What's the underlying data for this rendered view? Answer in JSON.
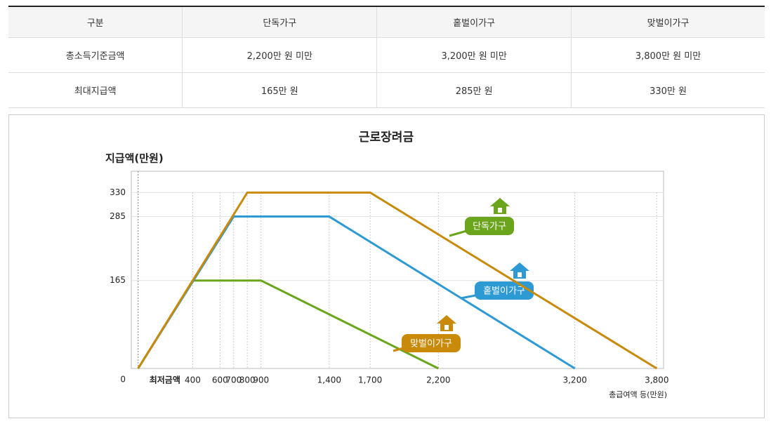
{
  "table": {
    "header": [
      "구분",
      "단독가구",
      "홑벌이가구",
      "맞벌이가구"
    ],
    "rows": [
      [
        "총소득기준금액",
        "2,200만 원 미만",
        "3,200만 원 미만",
        "3,800만 원 미만"
      ],
      [
        "최대지급액",
        "165만 원",
        "285만 원",
        "330만 원"
      ]
    ]
  },
  "chart_data": {
    "type": "line",
    "title": "근로장려금",
    "y_label": "지급액(만원)",
    "x_label": "총급여액 등(만원)",
    "series": [
      {
        "name": "단독가구",
        "color": "#6aa51c",
        "x": [
          0,
          400,
          900,
          2200
        ],
        "values": [
          0,
          165,
          165,
          0
        ]
      },
      {
        "name": "홑벌이가구",
        "color": "#2e9ad4",
        "x": [
          0,
          700,
          1400,
          3200
        ],
        "values": [
          0,
          285,
          285,
          0
        ]
      },
      {
        "name": "맞벌이가구",
        "color": "#c98a0a",
        "x": [
          0,
          800,
          1700,
          3800
        ],
        "values": [
          0,
          330,
          330,
          0
        ]
      }
    ],
    "xlim": [
      -50,
      3850
    ],
    "ylim": [
      0,
      370
    ],
    "xticks": [
      {
        "value": 0,
        "label": "최저금액"
      },
      {
        "value": 400,
        "label": "400"
      },
      {
        "value": 600,
        "label": "600"
      },
      {
        "value": 700,
        "label": "700"
      },
      {
        "value": 800,
        "label": "800"
      },
      {
        "value": 900,
        "label": "900"
      },
      {
        "value": 1400,
        "label": "1,400"
      },
      {
        "value": 1700,
        "label": "1,700"
      },
      {
        "value": 2200,
        "label": "2,200"
      },
      {
        "value": 3200,
        "label": "3,200"
      },
      {
        "value": 3800,
        "label": "3,800"
      }
    ],
    "yticks": [
      0,
      165,
      285,
      330
    ],
    "grid": true
  }
}
